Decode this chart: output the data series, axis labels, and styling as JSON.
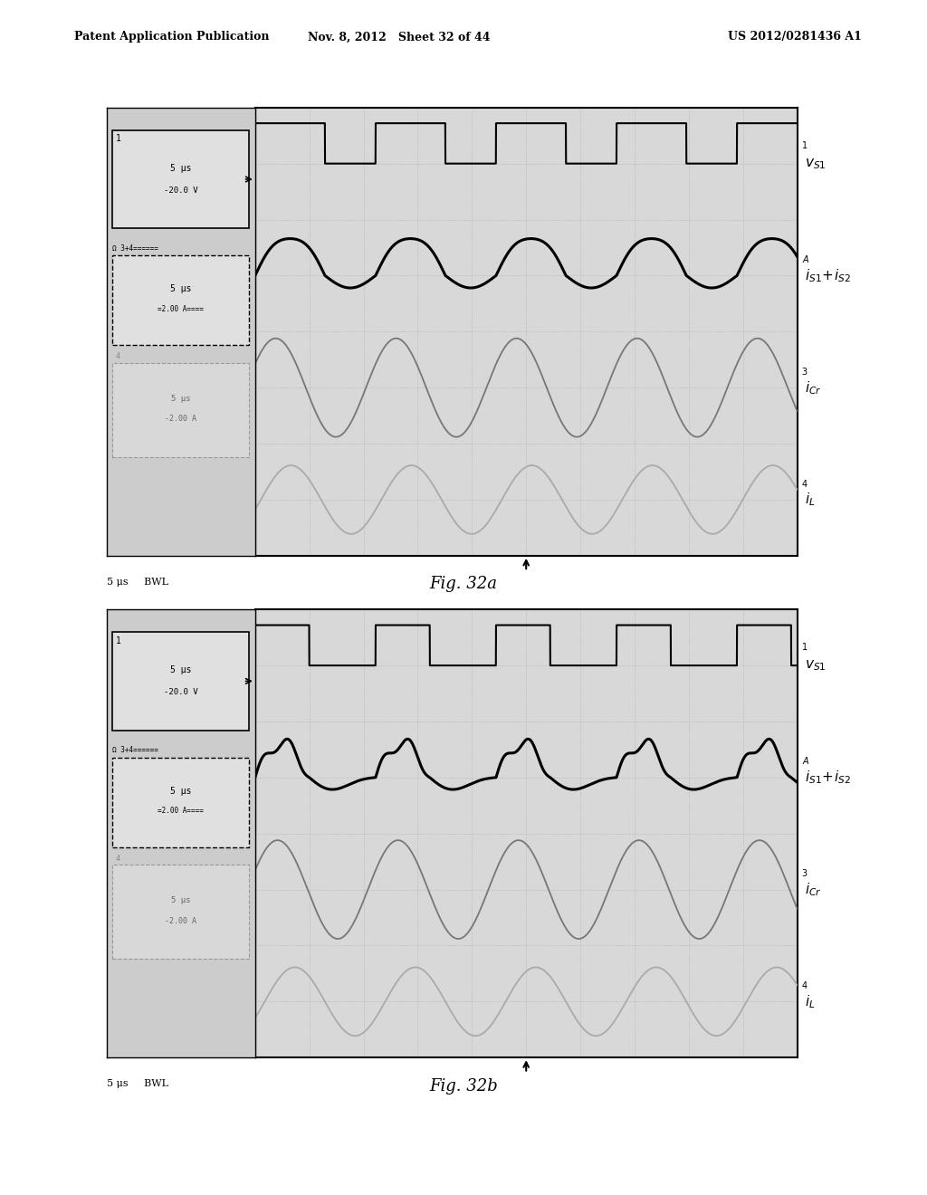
{
  "header_left": "Patent Application Publication",
  "header_mid": "Nov. 8, 2012   Sheet 32 of 44",
  "header_right": "US 2012/0281436 A1",
  "fig_a_caption": "Fig. 32a",
  "fig_b_caption": "Fig. 32b",
  "bg_color": "#ffffff",
  "scope_bg": "#d8d8d8",
  "sidebar_bg": "#cccccc",
  "grid_color": "#888888",
  "border_color": "#000000",
  "signal_black": "#000000",
  "signal_gray": "#777777",
  "signal_lightgray": "#aaaaaa"
}
